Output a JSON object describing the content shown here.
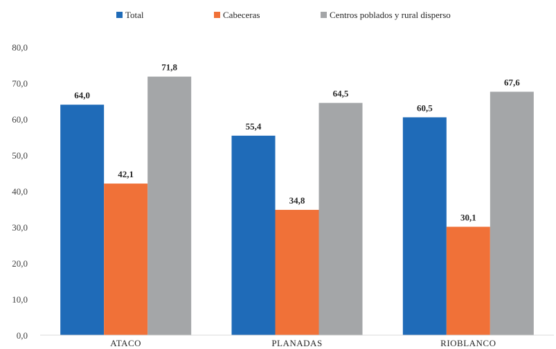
{
  "chart_data": {
    "type": "bar",
    "title": "",
    "xlabel": "",
    "ylabel": "",
    "categories": [
      "ATACO",
      "PLANADAS",
      "RIOBLANCO"
    ],
    "series": [
      {
        "name": "Total",
        "color": "#1f6bb8",
        "values": [
          64.0,
          55.4,
          60.5
        ],
        "labels": [
          "64,0",
          "55,4",
          "60,5"
        ]
      },
      {
        "name": "Cabeceras",
        "color": "#f07138",
        "values": [
          42.1,
          34.8,
          30.1
        ],
        "labels": [
          "42,1",
          "34,8",
          "30,1"
        ]
      },
      {
        "name": "Centros poblados y rural disperso",
        "color": "#a4a6a8",
        "values": [
          71.8,
          64.5,
          67.6
        ],
        "labels": [
          "71,8",
          "64,5",
          "67,6"
        ]
      }
    ],
    "ylim": [
      0,
      80
    ],
    "yticks": [
      0,
      10,
      20,
      30,
      40,
      50,
      60,
      70,
      80
    ],
    "ytick_labels": [
      "0,0",
      "10,0",
      "20,0",
      "30,0",
      "40,0",
      "50,0",
      "60,0",
      "70,0",
      "80,0"
    ],
    "grid": false,
    "legend_position": "top-center"
  }
}
